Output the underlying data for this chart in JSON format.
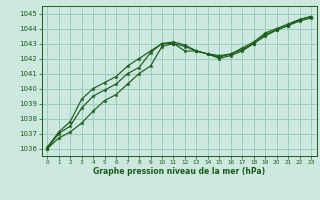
{
  "title": "Graphe pression niveau de la mer (hPa)",
  "bg_color": "#cce8df",
  "grid_color": "#99ccbb",
  "line_color": "#1a5c1a",
  "xlim": [
    -0.5,
    23.5
  ],
  "ylim": [
    1035.5,
    1045.5
  ],
  "yticks": [
    1036,
    1037,
    1038,
    1039,
    1040,
    1041,
    1042,
    1043,
    1044,
    1045
  ],
  "xticks": [
    0,
    1,
    2,
    3,
    4,
    5,
    6,
    7,
    8,
    9,
    10,
    11,
    12,
    13,
    14,
    15,
    16,
    17,
    18,
    19,
    20,
    21,
    22,
    23
  ],
  "line1": [
    1036.0,
    1036.7,
    1037.1,
    1037.7,
    1038.5,
    1039.2,
    1039.6,
    1040.3,
    1041.0,
    1041.5,
    1042.8,
    1043.0,
    1042.5,
    1042.5,
    1042.3,
    1042.2,
    1042.3,
    1042.6,
    1043.0,
    1043.5,
    1043.9,
    1044.2,
    1044.6,
    1044.8
  ],
  "line2": [
    1036.0,
    1037.0,
    1037.5,
    1038.7,
    1039.5,
    1039.9,
    1040.3,
    1041.0,
    1041.4,
    1042.4,
    1043.0,
    1043.0,
    1042.8,
    1042.5,
    1042.3,
    1042.1,
    1042.3,
    1042.7,
    1043.1,
    1043.7,
    1044.0,
    1044.3,
    1044.6,
    1044.8
  ],
  "line3": [
    1036.1,
    1037.1,
    1037.8,
    1039.3,
    1040.0,
    1040.4,
    1040.8,
    1041.5,
    1042.0,
    1042.5,
    1043.0,
    1043.1,
    1042.9,
    1042.5,
    1042.3,
    1042.0,
    1042.2,
    1042.5,
    1043.0,
    1043.6,
    1043.9,
    1044.2,
    1044.5,
    1044.7
  ]
}
